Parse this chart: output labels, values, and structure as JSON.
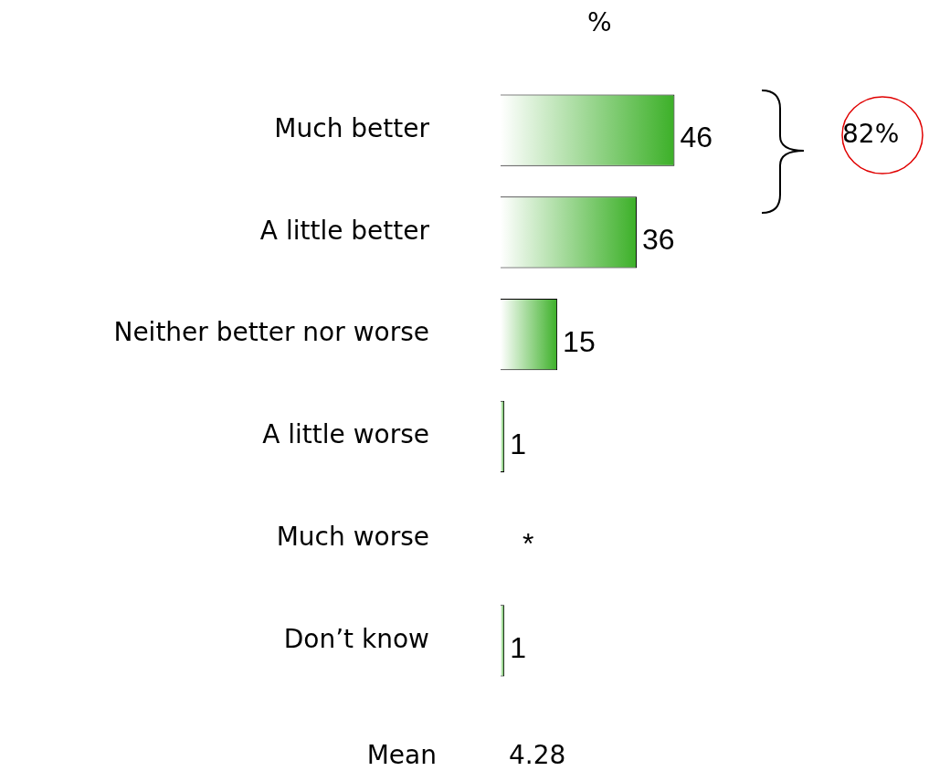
{
  "chart_data": {
    "type": "bar",
    "orientation": "horizontal",
    "title": "%",
    "categories": [
      "Much better",
      "A little better",
      "Neither better nor worse",
      "A little worse",
      "Much worse",
      "Don’t know"
    ],
    "values": [
      46,
      36,
      15,
      1,
      null,
      1
    ],
    "value_labels": [
      "46",
      "36",
      "15",
      "1",
      "*",
      "1"
    ],
    "color": "#3cb028",
    "annotations": [
      "82%",
      "Mean 4.28"
    ],
    "legend": false,
    "grid": false
  }
}
